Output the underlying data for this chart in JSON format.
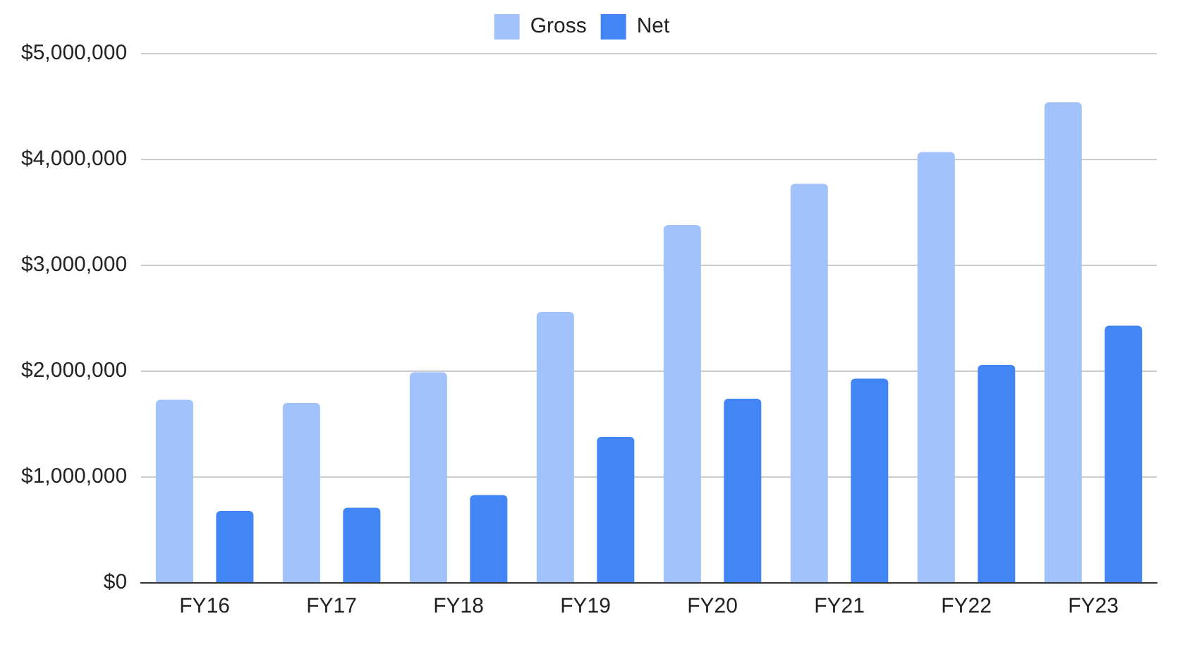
{
  "chart_data": {
    "type": "bar",
    "categories": [
      "FY16",
      "FY17",
      "FY18",
      "FY19",
      "FY20",
      "FY21",
      "FY22",
      "FY23"
    ],
    "series": [
      {
        "name": "Gross",
        "color": "#a1c2fa",
        "values": [
          1730000,
          1700000,
          1990000,
          2560000,
          3380000,
          3770000,
          4070000,
          4540000
        ]
      },
      {
        "name": "Net",
        "color": "#4285f4",
        "values": [
          680000,
          710000,
          830000,
          1380000,
          1740000,
          1930000,
          2060000,
          2430000
        ]
      }
    ],
    "ylim": [
      0,
      5000000
    ],
    "yticks": [
      {
        "value": 0,
        "label": "$0"
      },
      {
        "value": 1000000,
        "label": "$1,000,000"
      },
      {
        "value": 2000000,
        "label": "$2,000,000"
      },
      {
        "value": 3000000,
        "label": "$3,000,000"
      },
      {
        "value": 4000000,
        "label": "$4,000,000"
      },
      {
        "value": 5000000,
        "label": "$5,000,000"
      }
    ],
    "grid": "y",
    "legend": "top"
  }
}
